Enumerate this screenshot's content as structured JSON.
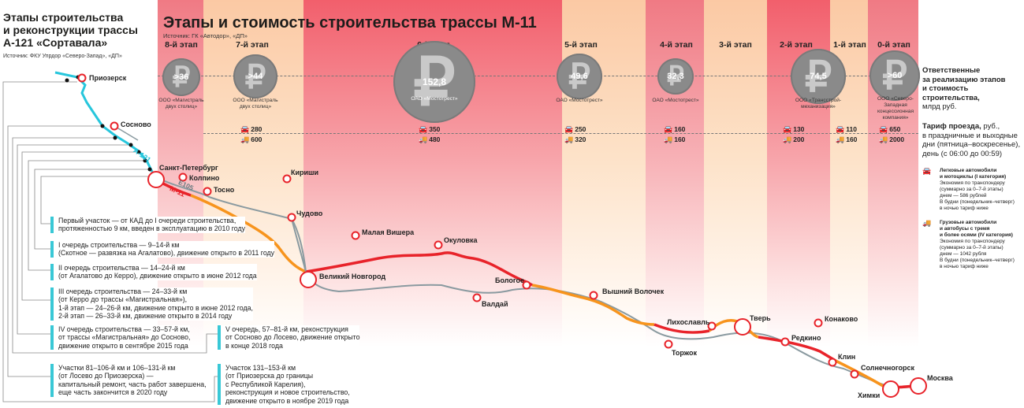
{
  "main_title": "Этапы и стоимость строительства трассы М-11",
  "main_source": "Источник: ГК «Автодор», «ДП»",
  "side_title": [
    "Этапы строительства",
    "и реконструкции трассы",
    "А-121 «Сортавала»"
  ],
  "side_source": "Источник: ФКУ Упрдор «Северо-Запад», «ДП»",
  "stages": [
    {
      "label": "8-й этап",
      "cost": ">36",
      "company": "ООО «Магистраль двух столиц»",
      "car": "",
      "truck": ""
    },
    {
      "label": "7-й этап",
      "cost": ">44",
      "company": "ООО «Магистраль двух столиц»",
      "car": "280",
      "truck": "600"
    },
    {
      "label": "6-й этап",
      "cost": "152,8",
      "company": "ОАО «Мостотрест»",
      "car": "350",
      "truck": "480"
    },
    {
      "label": "5-й этап",
      "cost": "49,6",
      "company": "ОАО «Мостотрест»",
      "car": "250",
      "truck": "320"
    },
    {
      "label": "4-й этап",
      "cost": "32,3",
      "company": "ОАО «Мостотрест»",
      "car": "160",
      "truck": "160"
    },
    {
      "label": "3-й этап",
      "cost": "",
      "company": "",
      "car": "",
      "truck": ""
    },
    {
      "label": "2-й этап",
      "cost": "74,5",
      "company": "ООО «Трансстрой-механизация»",
      "car": "130",
      "truck": "200"
    },
    {
      "label": "1-й этап",
      "cost": "",
      "company": "",
      "car": "110",
      "truck": "160"
    },
    {
      "label": "0-й этап",
      "cost": ">60",
      "company": "ООО «Северо-Западная концессионная компания»",
      "car": "650",
      "truck": "2000"
    }
  ],
  "currency_symbol": "₽",
  "car_icon": "🚘",
  "truck_icon": "🚚",
  "legend": {
    "responsible_1": "Ответственные",
    "responsible_2": "за реализацию этапов",
    "responsible_3": "и стоимость",
    "responsible_4": "строительства,",
    "responsible_5": "млрд руб.",
    "tariff_1": "Тариф проезда,",
    "tariff_2": "руб.,",
    "tariff_3": "в праздничные и выходные",
    "tariff_4": "дни (пятница–воскресенье),",
    "tariff_5": "день (с 06:00 до 00:59)",
    "cars_title_1": "Легковые автомобили",
    "cars_title_2": "и мотоциклы (I категория)",
    "cars_text": [
      "Экономия по транспондеру",
      "(суммарно за 0–7-й этапы)",
      "днем — 586 рублей",
      "В будни (понедельник–четверг)",
      "в ночью тариф ниже"
    ],
    "trucks_title_1": "Грузовые автомобили",
    "trucks_title_2": "и автобусы с тремя",
    "trucks_title_3": "и более осями (IV категория)",
    "trucks_text": [
      "Экономия по транспондеру",
      "(суммарно за 0–7-й этапы)",
      "днем — 1042 рубля",
      "В будни (понедельник–четверг)",
      "в ночью тариф ниже"
    ]
  },
  "road_labels": {
    "a121": "А-121",
    "m11": "М-11",
    "e105": "Е105"
  },
  "cities": {
    "priozersk": "Приозерск",
    "sosnovo": "Сосново",
    "spb": "Санкт-Петербург",
    "koltino": "Колпино",
    "tosno": "Тосно",
    "kirishi": "Кириши",
    "chudovo": "Чудово",
    "mvishera": "Малая Вишера",
    "okulovka": "Окуловка",
    "vnovgorod": "Великий Новгород",
    "bologoe": "Бологое",
    "valday": "Валдай",
    "vvolochek": "Вышний Волочек",
    "likhoslavl": "Лихославль",
    "tver": "Тверь",
    "konakovo": "Конаково",
    "redkino": "Редкино",
    "torzhok": "Торжок",
    "klin": "Клин",
    "solnechnogorsk": "Солнечногорск",
    "khimki": "Химки",
    "moskva": "Москва"
  },
  "notes": [
    {
      "lines": [
        "Первый участок — от КАД до I очереди строительства,",
        "протяженностью 9 км, введен в эксплуатацию в 2010 году"
      ]
    },
    {
      "lines": [
        "I очередь строительства — 9–14-й км",
        "(Скотное — развязка на Агалатово), движение открыто в 2011 году"
      ]
    },
    {
      "lines": [
        "II очередь строительства — 14–24-й км",
        "(от Агалатово до Керро), движение открыто в июне 2012 года"
      ]
    },
    {
      "lines": [
        "III очередь строительства — 24–33-й км",
        "(от Керро до трассы «Магистральная»),",
        "1-й этап — 24–26-й км, движение открыто в июне 2012 года,",
        "2-й этап — 26–33-й км, движение открыто в 2014 году"
      ]
    },
    {
      "lines": [
        "IV очередь строительства — 33–57-й км,",
        "от трассы «Магистральная» до Сосново,",
        "движение открыто в сентябре 2015 года"
      ]
    },
    {
      "lines": [
        "V очередь, 57–81-й км, реконструкция",
        "от Сосново до Лосево, движение открыто",
        "в конце 2018 года"
      ]
    },
    {
      "lines": [
        "Участки 81–106-й км и 106–131-й км",
        "(от Лосево до Приозерска) —",
        "капитальный ремонт, часть работ завершена,",
        "еще часть закончится в 2020 году"
      ]
    },
    {
      "lines": [
        "Участок 131–153-й км",
        "(от Приозерска до границы",
        "с Республикой Карелия),",
        "реконструкция и новое строительство,",
        "движение открыто в ноябре 2019 года"
      ]
    }
  ]
}
